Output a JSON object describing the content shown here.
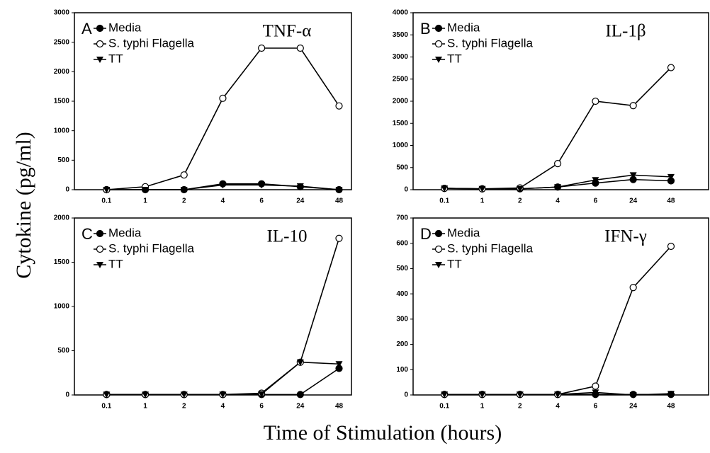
{
  "ylabel": "Cytokine (pg/ml)",
  "xlabel": "Time of Stimulation (hours)",
  "chart_data": [
    {
      "type": "line",
      "letter": "A",
      "title": "TNF-α",
      "categories": [
        "0.1",
        "1",
        "2",
        "4",
        "6",
        "24",
        "48"
      ],
      "ylim": [
        0,
        3000
      ],
      "yticks": [
        0,
        500,
        1000,
        1500,
        2000,
        2500,
        3000
      ],
      "series": [
        {
          "name": "Media",
          "color": "#000000",
          "marker": "filled-circle",
          "values": [
            0,
            0,
            0,
            100,
            100,
            50,
            0
          ]
        },
        {
          "name": "S. typhi Flagella",
          "color": "#000000",
          "marker": "open-circle",
          "values": [
            0,
            50,
            250,
            1550,
            2400,
            2400,
            1420
          ]
        },
        {
          "name": "TT",
          "color": "#000000",
          "marker": "triangle-down",
          "values": [
            0,
            0,
            0,
            80,
            80,
            60,
            0
          ]
        }
      ]
    },
    {
      "type": "line",
      "letter": "B",
      "title": "IL-1β",
      "categories": [
        "0.1",
        "1",
        "2",
        "4",
        "6",
        "24",
        "48"
      ],
      "ylim": [
        0,
        4000
      ],
      "yticks": [
        0,
        500,
        1000,
        1500,
        2000,
        2500,
        3000,
        3500,
        4000
      ],
      "series": [
        {
          "name": "Media",
          "color": "#000000",
          "marker": "filled-circle",
          "values": [
            30,
            20,
            20,
            60,
            150,
            230,
            200
          ]
        },
        {
          "name": "S. typhi Flagella",
          "color": "#000000",
          "marker": "open-circle",
          "values": [
            30,
            20,
            40,
            590,
            2000,
            1900,
            2760
          ]
        },
        {
          "name": "TT",
          "color": "#000000",
          "marker": "triangle-down",
          "values": [
            30,
            20,
            20,
            60,
            220,
            330,
            290
          ]
        }
      ]
    },
    {
      "type": "line",
      "letter": "C",
      "title": "IL-10",
      "categories": [
        "0.1",
        "1",
        "2",
        "4",
        "6",
        "24",
        "48"
      ],
      "ylim": [
        0,
        2000
      ],
      "yticks": [
        0,
        500,
        1000,
        1500,
        2000
      ],
      "series": [
        {
          "name": "Media",
          "color": "#000000",
          "marker": "filled-circle",
          "values": [
            5,
            5,
            5,
            5,
            5,
            5,
            300
          ]
        },
        {
          "name": "S. typhi Flagella",
          "color": "#000000",
          "marker": "open-circle",
          "values": [
            5,
            5,
            5,
            5,
            20,
            370,
            1770
          ]
        },
        {
          "name": "TT",
          "color": "#000000",
          "marker": "triangle-down",
          "values": [
            5,
            5,
            5,
            5,
            10,
            370,
            350
          ]
        }
      ]
    },
    {
      "type": "line",
      "letter": "D",
      "title": "IFN-γ",
      "categories": [
        "0.1",
        "1",
        "2",
        "4",
        "6",
        "24",
        "48"
      ],
      "ylim": [
        0,
        700
      ],
      "yticks": [
        0,
        100,
        200,
        300,
        400,
        500,
        600,
        700
      ],
      "series": [
        {
          "name": "Media",
          "color": "#000000",
          "marker": "filled-circle",
          "values": [
            2,
            2,
            2,
            2,
            2,
            2,
            2
          ]
        },
        {
          "name": "S. typhi Flagella",
          "color": "#000000",
          "marker": "open-circle",
          "values": [
            2,
            2,
            2,
            2,
            35,
            425,
            588
          ]
        },
        {
          "name": "TT",
          "color": "#000000",
          "marker": "triangle-down",
          "values": [
            2,
            2,
            2,
            2,
            10,
            0,
            5
          ]
        }
      ]
    }
  ]
}
